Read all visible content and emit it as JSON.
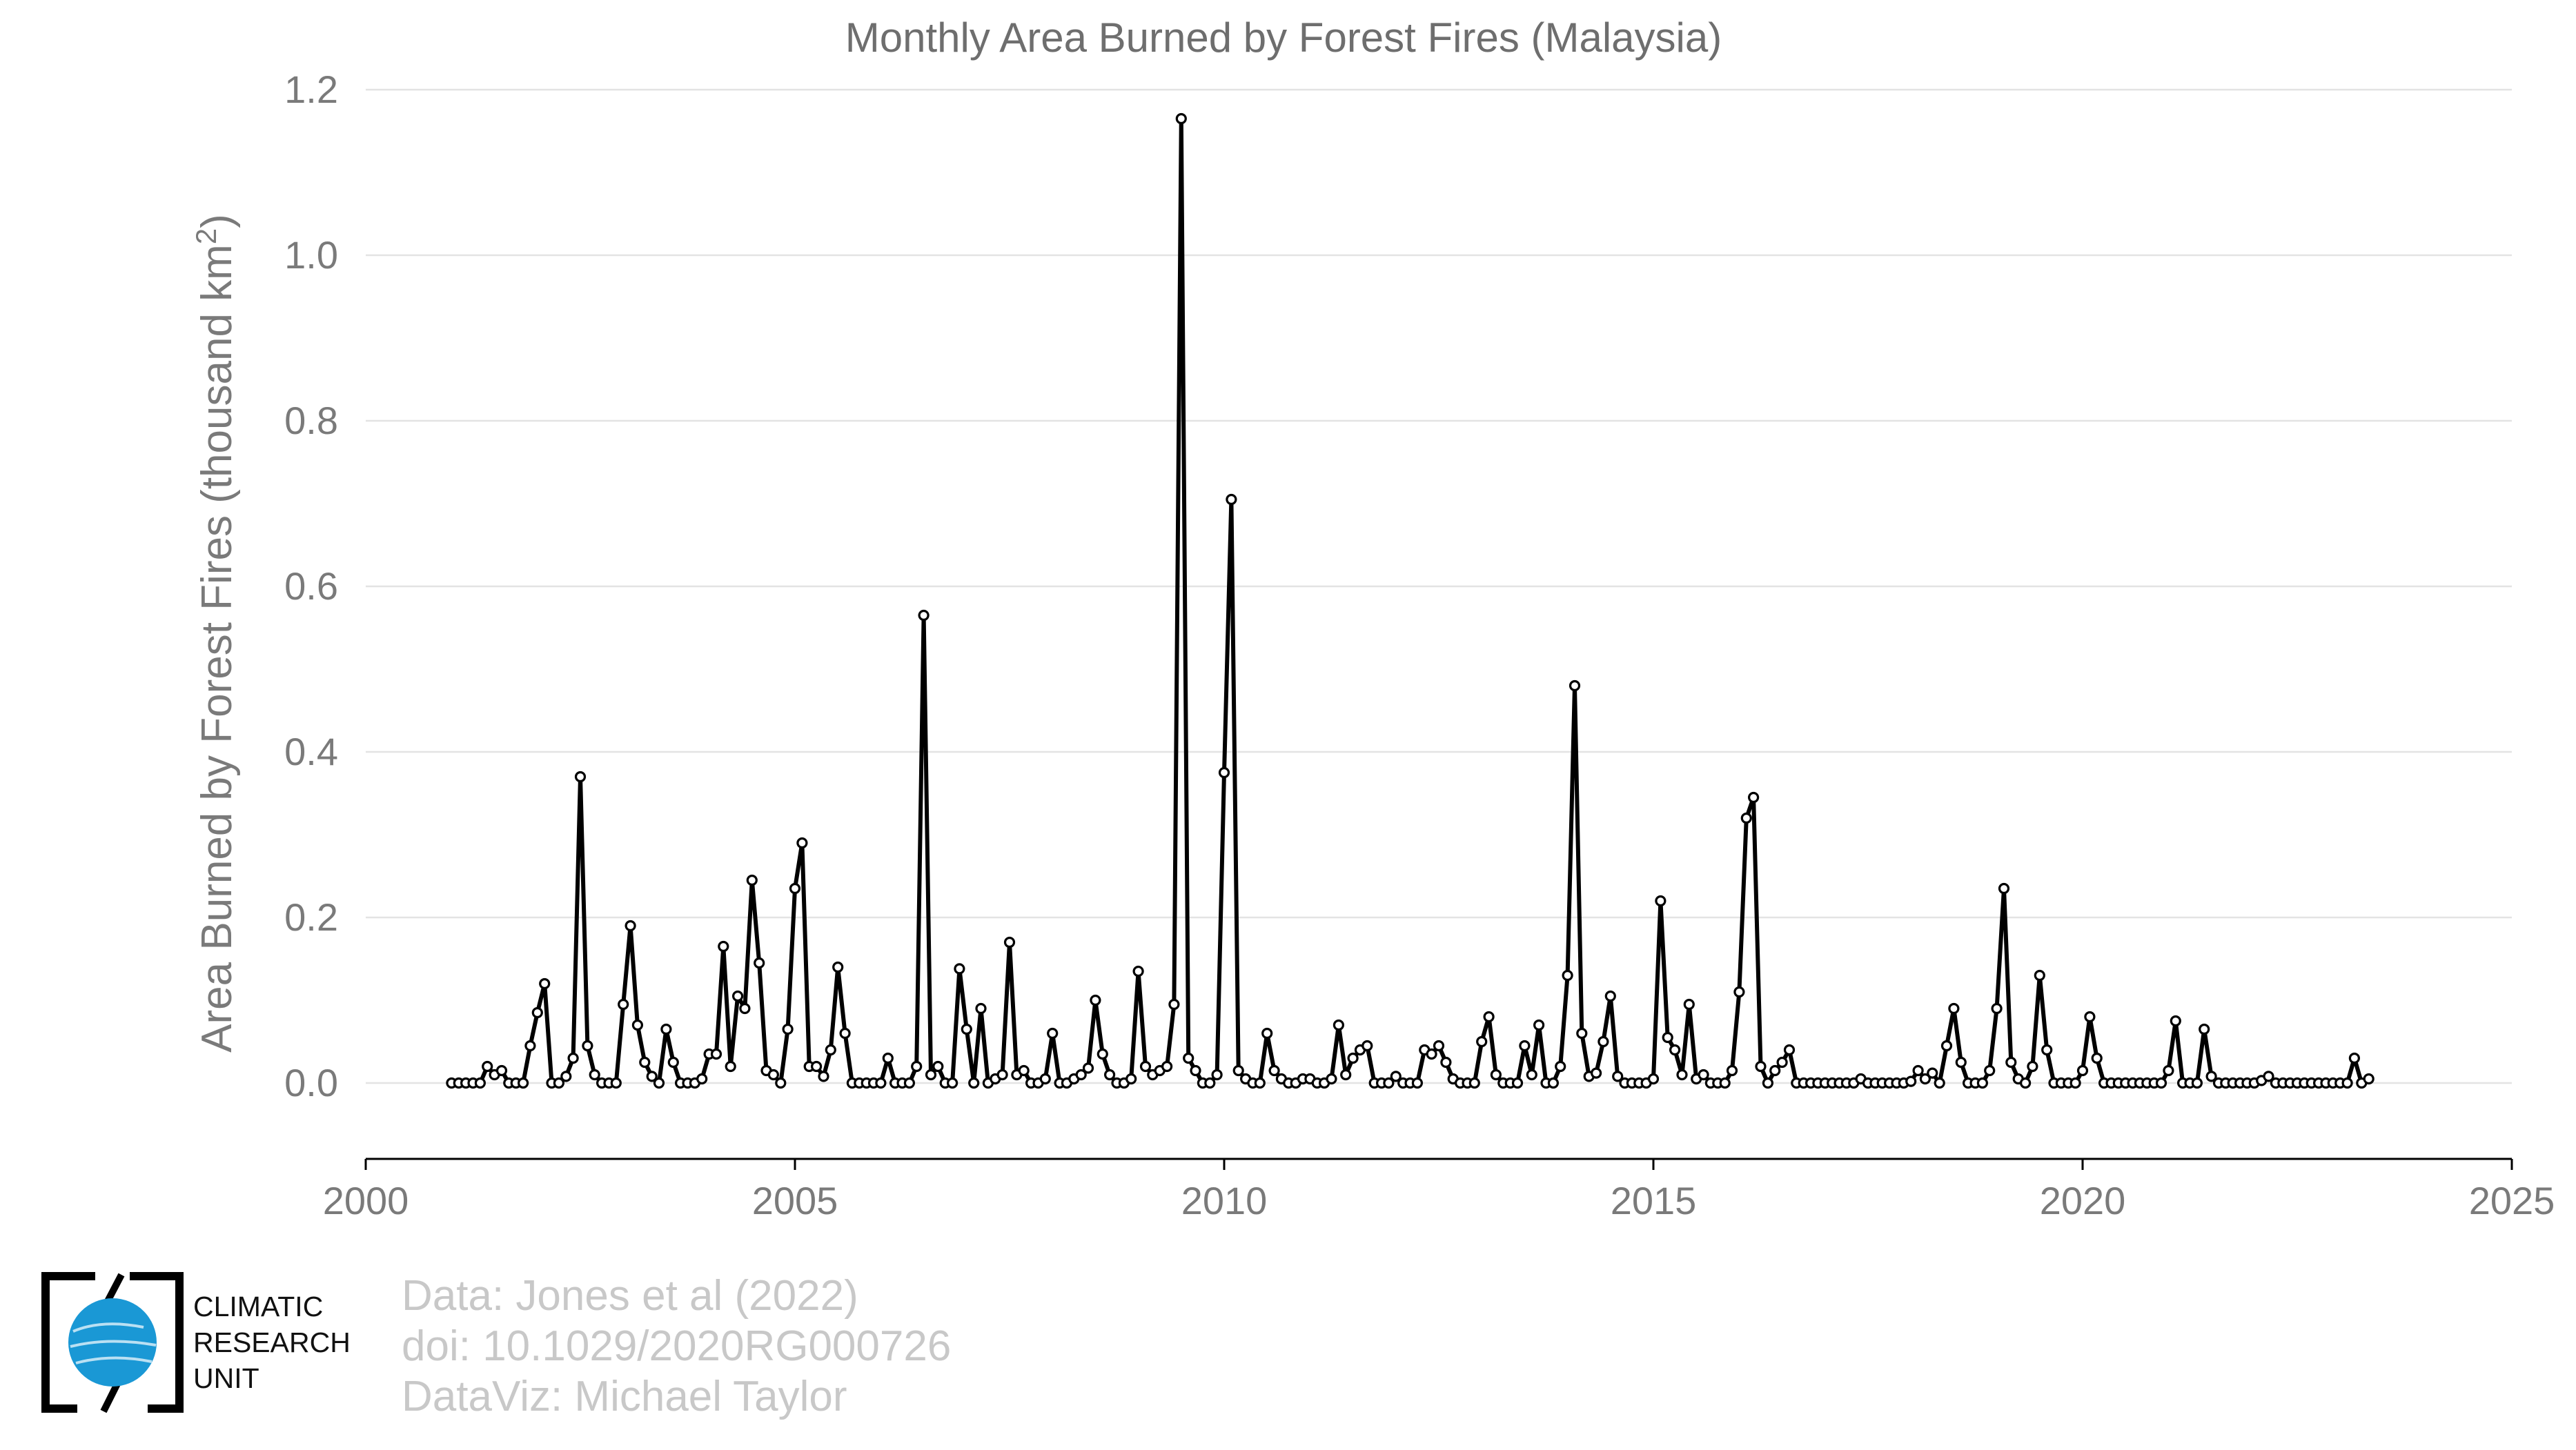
{
  "chart_data": {
    "type": "line",
    "title": "Monthly Area Burned by Forest Fires (Malaysia)",
    "ylabel": "Area Burned by Forest Fires (thousand km",
    "ylabel_superscript": "2",
    "ylabel_close": ")",
    "xlabel": "",
    "xlim": [
      2000,
      2025
    ],
    "ylim": [
      0,
      1.2
    ],
    "x_ticks": [
      "2000",
      "2005",
      "2010",
      "2015",
      "2020",
      "2025"
    ],
    "y_ticks": [
      "0.0",
      "0.2",
      "0.4",
      "0.6",
      "0.8",
      "1.0",
      "1.2"
    ],
    "grid": "horizontal",
    "marker": "open circle",
    "line_color": "#000000",
    "series": [
      {
        "start": "2001-01",
        "values": [
          0,
          0,
          0,
          0,
          0,
          0.02,
          0.01,
          0.015,
          0,
          0,
          0,
          0.045,
          0.085,
          0.12,
          0,
          0,
          0.008,
          0.03,
          0.37,
          0.045,
          0.01,
          0,
          0,
          0,
          0.095,
          0.19,
          0.07,
          0.025,
          0.008,
          0,
          0.065,
          0.025,
          0,
          0,
          0,
          0.005,
          0.035,
          0.035,
          0.165,
          0.02,
          0.105,
          0.09,
          0.245,
          0.145,
          0.015,
          0.01,
          0,
          0.065,
          0.235,
          0.29,
          0.02,
          0.02,
          0.008,
          0.04,
          0.14,
          0.06,
          0,
          0,
          0,
          0,
          0,
          0.03,
          0,
          0,
          0,
          0.02,
          0.565,
          0.01,
          0.02,
          0,
          0,
          0.138,
          0.065,
          0,
          0.09,
          0,
          0.005,
          0.01,
          0.17,
          0.01,
          0.015,
          0,
          0,
          0.005,
          0.06,
          0,
          0,
          0.005,
          0.01,
          0.018,
          0.1,
          0.035,
          0.01,
          0,
          0,
          0.005,
          0.135,
          0.02,
          0.01,
          0.015,
          0.02,
          0.095,
          1.165,
          0.03,
          0.015,
          0,
          0,
          0.01,
          0.375,
          0.705,
          0.015,
          0.005,
          0,
          0,
          0.06,
          0.015,
          0.005,
          0,
          0,
          0.005,
          0.005,
          0,
          0,
          0.005,
          0.07,
          0.01,
          0.03,
          0.04,
          0.045,
          0,
          0,
          0,
          0.008,
          0,
          0,
          0,
          0.04,
          0.035,
          0.045,
          0.025,
          0.005,
          0,
          0,
          0,
          0.05,
          0.08,
          0.01,
          0,
          0,
          0,
          0.045,
          0.01,
          0.07,
          0,
          0,
          0.02,
          0.13,
          0.48,
          0.06,
          0.008,
          0.012,
          0.05,
          0.105,
          0.008,
          0,
          0,
          0,
          0,
          0.005,
          0.22,
          0.055,
          0.04,
          0.01,
          0.095,
          0.005,
          0.01,
          0,
          0,
          0,
          0.015,
          0.11,
          0.32,
          0.345,
          0.02,
          0,
          0.015,
          0.025,
          0.04,
          0,
          0,
          0,
          0,
          0,
          0,
          0,
          0,
          0,
          0.005,
          0,
          0,
          0,
          0,
          0,
          0,
          0.002,
          0.015,
          0.005,
          0.012,
          0,
          0.045,
          0.09,
          0.025,
          0,
          0,
          0,
          0.015,
          0.09,
          0.235,
          0.025,
          0.005,
          0,
          0.02,
          0.13,
          0.04,
          0,
          0,
          0,
          0,
          0.015,
          0.08,
          0.03,
          0,
          0,
          0,
          0,
          0,
          0,
          0,
          0,
          0,
          0.015,
          0.075,
          0,
          0,
          0,
          0.065,
          0.008,
          0,
          0,
          0,
          0,
          0,
          0,
          0.003,
          0.008,
          0,
          0,
          0,
          0,
          0,
          0,
          0,
          0,
          0,
          0,
          0,
          0.03,
          0,
          0.005
        ]
      }
    ]
  },
  "credits": {
    "line1": "Data: Jones et al (2022)",
    "line2": "doi: 10.1029/2020RG000726",
    "line3": "DataViz: Michael Taylor"
  },
  "logo": {
    "line1": "CLIMATIC",
    "line2": "RESEARCH",
    "line3": "UNIT",
    "globe_color": "#1a98d5"
  }
}
